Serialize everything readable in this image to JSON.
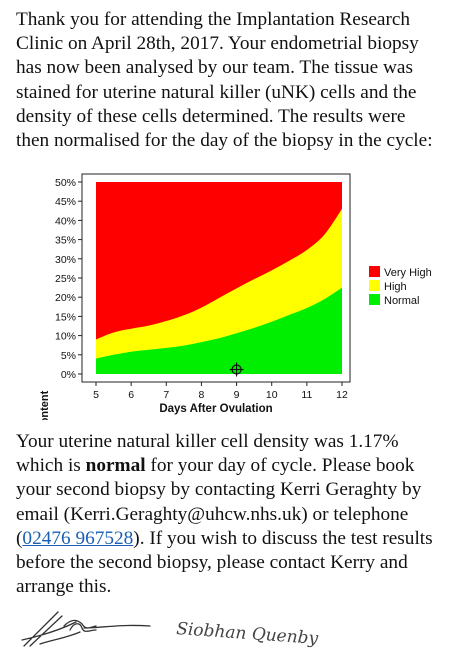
{
  "intro": {
    "lines": [
      "Thank you for attending the Implantation Research",
      "Clinic on April 28th, 2017. Your endometrial biopsy",
      "has now been analysed by our team. The tissue was",
      "stained for uterine natural killer (uNK) cells and the",
      "density of these cells determined. The results were",
      "then normalised for the day of the biopsy in the cycle:"
    ]
  },
  "chart_data": {
    "type": "area",
    "xlabel": "Days After Ovulation",
    "ylabel": "Percent uNK Content",
    "xlim": [
      5,
      12
    ],
    "ylim": [
      0,
      50
    ],
    "x_ticks": [
      "5",
      "6",
      "7",
      "8",
      "9",
      "10",
      "11",
      "12"
    ],
    "y_ticks": [
      "0%",
      "5%",
      "10%",
      "15%",
      "20%",
      "25%",
      "30%",
      "35%",
      "40%",
      "45%",
      "50%"
    ],
    "x": [
      5,
      5.5,
      6,
      6.5,
      7,
      7.5,
      8,
      8.5,
      9,
      9.5,
      10,
      10.5,
      11,
      11.5,
      12
    ],
    "series": [
      {
        "name": "Normal",
        "color": "#00ee00",
        "upper": [
          4.0,
          5.0,
          5.8,
          6.3,
          6.8,
          7.4,
          8.3,
          9.3,
          10.6,
          12.0,
          13.6,
          15.4,
          17.2,
          19.5,
          22.5
        ]
      },
      {
        "name": "High",
        "color": "#ffff00",
        "upper": [
          9.0,
          10.8,
          11.8,
          12.6,
          13.8,
          15.3,
          17.3,
          19.8,
          22.3,
          24.7,
          27.0,
          29.5,
          32.3,
          36.3,
          43.0
        ]
      },
      {
        "name": "Very High",
        "color": "#ff0000",
        "upper": [
          50,
          50,
          50,
          50,
          50,
          50,
          50,
          50,
          50,
          50,
          50,
          50,
          50,
          50,
          50
        ]
      }
    ],
    "legend_order": [
      "Very High",
      "High",
      "Normal"
    ],
    "legend_position": "right",
    "patient_point": {
      "x": 9,
      "y": 1.17,
      "marker": "crosshair-circle"
    },
    "grid": false
  },
  "result": {
    "l1": "Your uterine natural killer cell density was 1.17%",
    "l2_pre": "which is ",
    "l2_bold": "normal",
    "l2_post": " for your day of cycle. Please book",
    "l3": "your second biopsy by contacting Kerri Geraghty by",
    "l4": "email (Kerri.Geraghty@uhcw.nhs.uk) or telephone",
    "l5_open": "(",
    "l5_phone": "02476 967528",
    "l5_post": "). If you wish to discuss the test results",
    "l6": "before the second biopsy, please contact Kerry and",
    "l7": "arrange this."
  },
  "signatures": {
    "left_signature_icon": "handwritten-signature",
    "right_signature_text": "Siobhan Quenby"
  }
}
